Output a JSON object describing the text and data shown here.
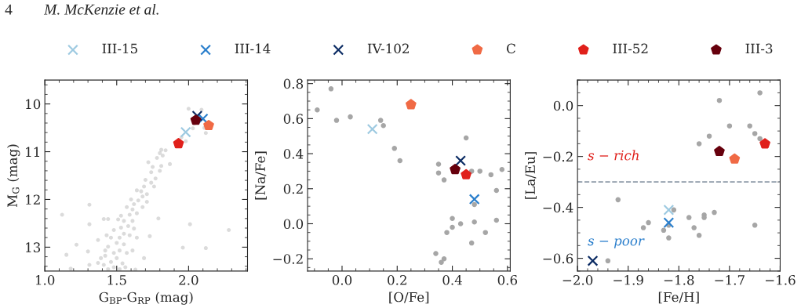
{
  "chart_data": [
    {
      "type": "scatter",
      "xlabel": "G$_{BP}$-G$_{RP}$ (mag)",
      "ylabel": "M$_{G}$ (mag)",
      "xlim": [
        1.0,
        2.41
      ],
      "xticks": [
        {
          "value": 1.0,
          "label": "1.0"
        },
        1.5,
        {
          "value": 2.0,
          "label": "2.0"
        }
      ],
      "ylim": [
        13.5,
        9.5
      ],
      "yticks": [
        10,
        11,
        12,
        13
      ],
      "legend": "top",
      "annotations": [
        "4",
        "M. McKenzie et al."
      ],
      "series": [
        {
          "color": "#bdbdbd",
          "marker": "circle",
          "x": [
            1.12,
            1.31,
            1.22,
            1.3,
            1.15,
            1.18,
            1.31,
            1.31,
            1.79,
            2.01,
            2.28,
            1.96,
            2.12,
            1.73,
            1.69,
            1.63,
            1.37,
            1.37,
            1.41,
            1.44,
            2.0,
            2.09,
            2.03,
            2.12,
            1.98,
            1.95,
            2.11,
            2.04,
            1.81,
            1.84,
            1.8,
            1.82,
            1.78,
            1.87,
            1.81,
            1.75,
            1.72,
            1.8,
            1.74,
            1.77,
            1.7,
            1.74,
            1.69,
            1.76,
            1.67,
            1.71,
            1.64,
            1.68,
            1.65,
            1.71,
            1.6,
            1.62,
            1.68,
            1.61,
            1.57,
            1.64,
            1.59,
            1.53,
            1.55,
            1.61,
            1.51,
            1.58,
            1.53,
            1.62,
            1.48,
            1.55,
            1.52,
            1.59,
            1.46,
            1.5,
            1.55,
            1.44,
            1.52,
            1.48,
            1.57,
            1.42,
            1.5,
            1.46,
            1.54,
            1.41,
            1.48,
            1.44,
            1.52,
            1.56,
            1.39,
            1.61,
            1.64,
            1.43,
            1.42
          ],
          "values": [
            12.32,
            12.11,
            12.95,
            13.09,
            13.16,
            13.45,
            13.37,
            12.52,
            12.4,
            12.52,
            12.64,
            13.01,
            13.02,
            12.77,
            13.23,
            13.47,
            13.33,
            12.85,
            12.41,
            12.41,
            10.1,
            10.12,
            10.51,
            10.61,
            10.78,
            10.7,
            10.5,
            10.41,
            10.96,
            10.97,
            11.03,
            11.08,
            11.13,
            11.26,
            11.3,
            11.32,
            11.22,
            11.4,
            11.43,
            11.56,
            11.59,
            11.65,
            11.73,
            11.73,
            11.83,
            11.89,
            11.81,
            11.94,
            12.02,
            12.05,
            12.0,
            12.1,
            12.16,
            12.21,
            12.16,
            12.29,
            12.32,
            12.34,
            12.45,
            12.45,
            12.42,
            12.56,
            12.59,
            12.61,
            12.64,
            12.72,
            12.8,
            12.75,
            12.8,
            12.91,
            12.94,
            12.99,
            13.07,
            13.12,
            13.12,
            13.18,
            13.23,
            13.31,
            13.34,
            13.37,
            13.42,
            13.46,
            13.46,
            13.42,
            13.23,
            13.07,
            12.8,
            12.75,
            13.07
          ]
        },
        {
          "name": "III-15",
          "color": "#9ecae1",
          "marker": "cross",
          "x": [
            1.98
          ],
          "values": [
            10.59
          ]
        },
        {
          "name": "III-14",
          "color": "#2b7fcc",
          "marker": "cross",
          "x": [
            2.1
          ],
          "values": [
            10.31
          ]
        },
        {
          "name": "IV-102",
          "color": "#0c2c64",
          "marker": "cross",
          "x": [
            2.06
          ],
          "values": [
            10.25
          ]
        },
        {
          "name": "C",
          "color": "#f06a45",
          "x": [
            2.14
          ],
          "values": [
            10.45
          ]
        },
        {
          "name": "III-52",
          "color": "#e0201b",
          "x": [
            1.93
          ],
          "values": [
            10.83
          ]
        },
        {
          "name": "III-3",
          "color": "#67000d",
          "x": [
            2.05
          ],
          "values": [
            10.34
          ]
        }
      ]
    },
    {
      "type": "scatter",
      "xlabel": "[O/Fe]",
      "ylabel": "[Na/Fe]",
      "xlim": [
        -0.125,
        0.61
      ],
      "xticks": [
        {
          "value": 0.0,
          "label": "0.0"
        },
        0.2,
        0.4,
        0.6
      ],
      "ylim": [
        -0.27,
        0.82
      ],
      "yticks": [
        {
          "value": -0.2,
          "label": "−0.2"
        },
        {
          "value": 0.0,
          "label": "0.0"
        },
        0.2,
        0.4,
        0.6,
        0.8
      ],
      "series": [
        {
          "color": "#a6a6a6",
          "marker": "circle",
          "x": [
            -0.09,
            -0.04,
            -0.02,
            0.03,
            0.14,
            0.15,
            0.19,
            0.21,
            0.35,
            0.35,
            0.37,
            0.45,
            0.47,
            0.5,
            0.54,
            0.58,
            0.56,
            0.48,
            0.4,
            0.4,
            0.43,
            0.38,
            0.48,
            0.56,
            0.52,
            0.47,
            0.34,
            0.37,
            0.36
          ],
          "values": [
            0.65,
            0.77,
            0.59,
            0.61,
            0.59,
            0.56,
            0.43,
            0.36,
            0.34,
            0.29,
            0.25,
            0.49,
            0.3,
            0.3,
            0.28,
            0.31,
            0.19,
            0.11,
            0.03,
            -0.02,
            0.0,
            -0.05,
            0.01,
            0.02,
            -0.05,
            -0.11,
            -0.17,
            -0.2,
            -0.22
          ]
        },
        {
          "color": "#9ecae1",
          "marker": "cross",
          "x": [
            0.11
          ],
          "values": [
            0.54
          ]
        },
        {
          "color": "#2b7fcc",
          "marker": "cross",
          "x": [
            0.48
          ],
          "values": [
            0.14
          ]
        },
        {
          "color": "#0c2c64",
          "marker": "cross",
          "x": [
            0.43
          ],
          "values": [
            0.36
          ]
        },
        {
          "color": "#f06a45",
          "x": [
            0.25
          ],
          "values": [
            0.68
          ]
        },
        {
          "color": "#e0201b",
          "x": [
            0.45
          ],
          "values": [
            0.28
          ]
        },
        {
          "color": "#67000d",
          "x": [
            0.41
          ],
          "values": [
            0.31
          ]
        }
      ]
    },
    {
      "type": "scatter",
      "xlabel": "[Fe/H]",
      "ylabel": "[La/Eu]",
      "xlim": [
        -2.0,
        -1.6
      ],
      "xticks": [
        {
          "value": -2.0,
          "label": "−2.0"
        },
        {
          "value": -1.9,
          "label": "−1.9"
        },
        {
          "value": -1.8,
          "label": "−1.8"
        },
        {
          "value": -1.7,
          "label": "−1.7"
        },
        {
          "value": -1.6,
          "label": "−1.6"
        }
      ],
      "ylim": [
        -0.65,
        0.1
      ],
      "yticks": [
        {
          "value": -0.6,
          "label": "−0.6"
        },
        {
          "value": -0.4,
          "label": "−0.4"
        },
        {
          "value": -0.2,
          "label": "−0.2"
        },
        {
          "value": 0.0,
          "label": "0.0"
        }
      ],
      "ref_lines": [
        {
          "axis": "y",
          "value": -0.3,
          "color": "#8c98a6",
          "line_style": "dashed"
        }
      ],
      "annotations": [
        "s − rich",
        "s − poor"
      ],
      "series": [
        {
          "color": "#a6a6a6",
          "marker": "circle",
          "x": [
            -1.92,
            -1.94,
            -1.87,
            -1.86,
            -1.83,
            -1.82,
            -1.82,
            -1.81,
            -1.78,
            -1.77,
            -1.76,
            -1.75,
            -1.75,
            -1.73,
            -1.65,
            -1.76,
            -1.74,
            -1.72,
            -1.7,
            -1.66,
            -1.65,
            -1.64,
            -1.64
          ],
          "values": [
            -0.37,
            -0.61,
            -0.48,
            -0.46,
            -0.49,
            -0.52,
            -0.47,
            -0.41,
            -0.44,
            -0.48,
            -0.51,
            -0.43,
            -0.44,
            -0.42,
            -0.47,
            -0.15,
            -0.12,
            0.02,
            -0.08,
            -0.08,
            -0.11,
            -0.13,
            0.05
          ]
        },
        {
          "color": "#9ecae1",
          "marker": "cross",
          "x": [
            -1.82
          ],
          "values": [
            -0.41
          ]
        },
        {
          "color": "#2b7fcc",
          "marker": "cross",
          "x": [
            -1.82
          ],
          "values": [
            -0.46
          ]
        },
        {
          "color": "#0c2c64",
          "marker": "cross",
          "x": [
            -1.97
          ],
          "values": [
            -0.61
          ]
        },
        {
          "color": "#f06a45",
          "x": [
            -1.69
          ],
          "values": [
            -0.21
          ]
        },
        {
          "color": "#e0201b",
          "x": [
            -1.63
          ],
          "values": [
            -0.15
          ]
        },
        {
          "color": "#67000d",
          "x": [
            -1.72
          ],
          "values": [
            -0.18
          ]
        }
      ]
    }
  ]
}
